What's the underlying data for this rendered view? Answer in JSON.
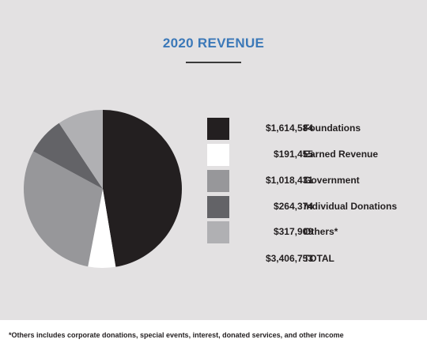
{
  "title": "2020 REVENUE",
  "chart_data": {
    "type": "pie",
    "slices": [
      {
        "label": "Foundations",
        "display": "$1,614,584",
        "value": 1614584,
        "color": "#231f20"
      },
      {
        "label": "Earned Revenue",
        "display": "$191,455",
        "value": 191455,
        "color": "#ffffff"
      },
      {
        "label": "Government",
        "display": "$1,018,431",
        "value": 1018431,
        "color": "#97979a"
      },
      {
        "label": "Individual Donations",
        "display": "$264,374",
        "value": 264374,
        "color": "#636367"
      },
      {
        "label": "Others*",
        "display": "$317,909",
        "value": 317909,
        "color": "#b0b0b3"
      }
    ],
    "total": {
      "label": "TOTAL",
      "display": "$3,406,753",
      "value": 3406753
    },
    "legend_position": "right"
  },
  "footnote": "*Others includes corporate donations, special events, interest, donated services, and other income",
  "colors": {
    "title": "#3b78b8",
    "panel_background": "#e3e1e2"
  }
}
